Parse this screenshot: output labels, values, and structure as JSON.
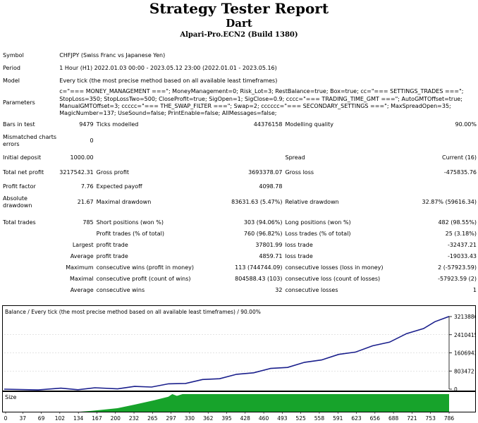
{
  "header": {
    "title": "Strategy Tester Report",
    "subtitle": "Dart",
    "server": "Alpari-Pro.ECN2 (Build 1380)"
  },
  "info": {
    "symbol_label": "Symbol",
    "symbol": "CHFJPY (Swiss Franc vs Japanese Yen)",
    "period_label": "Period",
    "period": "1 Hour (H1) 2022.01.03 00:00 - 2023.05.12 23:00 (2022.01.01 - 2023.05.16)",
    "model_label": "Model",
    "model": "Every tick (the most precise method based on all available least timeframes)",
    "parameters_label": "Parameters",
    "parameters": "c=\"=== MONEY_MANAGEMENT ===\"; MoneyManagement=0; Risk_Lot=3; RestBalance=true; Box=true; cc=\"=== SETTINGS_TRADES ===\"; StopLoss=350; StopLossTwo=500; CloseProfit=true; SigOpen=1; SigClose=0.9; cccc=\"=== TRADING_TIME_GMT ===\"; AutoGMTOffset=true; ManualGMTOffset=3; ccccc=\"=== THE_SWAP_FILTER ===\"; Swap=2; cccccc=\"=== SECONDARY_SETTINGS ===\"; MaxSpreadOpen=35; MagicNumber=137; UseSound=false; PrintEnable=false; AllMessages=false;"
  },
  "stats": {
    "bars_label": "Bars in test",
    "bars": "9479",
    "ticks_label": "Ticks modelled",
    "ticks": "44376158",
    "quality_label": "Modelling quality",
    "quality": "90.00%",
    "mismatch_label": "Mismatched charts errors",
    "mismatch": "0",
    "deposit_label": "Initial deposit",
    "deposit": "1000.00",
    "spread_label": "Spread",
    "spread": "Current (16)",
    "netprofit_label": "Total net profit",
    "netprofit": "3217542.31",
    "grossprofit_label": "Gross profit",
    "grossprofit": "3693378.07",
    "grossloss_label": "Gross loss",
    "grossloss": "-475835.76",
    "pf_label": "Profit factor",
    "pf": "7.76",
    "payoff_label": "Expected payoff",
    "payoff": "4098.78",
    "absdd_label": "Absolute drawdown",
    "absdd": "21.67",
    "maxdd_label": "Maximal drawdown",
    "maxdd": "83631.63 (5.47%)",
    "reldd_label": "Relative drawdown",
    "reldd": "32.87% (59616.34)",
    "trades_label": "Total trades",
    "trades": "785",
    "short_label": "Short positions (won %)",
    "short": "303 (94.06%)",
    "long_label": "Long positions (won %)",
    "long": "482 (98.55%)",
    "ptrades_label": "Profit trades (% of total)",
    "ptrades": "760 (96.82%)",
    "ltrades_label": "Loss trades (% of total)",
    "ltrades": "25 (3.18%)",
    "largest_label": "Largest",
    "avg_label": "Average",
    "maximum_label": "Maximum",
    "maximal_label": "Maximal",
    "average2_label": "Average",
    "profit_trade_label": "profit trade",
    "loss_trade_label": "loss trade",
    "largest_profit": "37801.99",
    "largest_loss": "-32437.21",
    "avg_profit": "4859.71",
    "avg_loss": "-19033.43",
    "cons_wins_money_label": "consecutive wins (profit in money)",
    "cons_wins_money": "113 (744744.09)",
    "cons_losses_money_label": "consecutive losses (loss in money)",
    "cons_losses_money": "2 (-57923.59)",
    "cons_profit_label": "consecutive profit (count of wins)",
    "cons_profit": "804588.43 (103)",
    "cons_loss_label": "consecutive loss (count of losses)",
    "cons_loss": "-57923.59 (2)",
    "avg_cons_wins_label": "consecutive wins",
    "avg_cons_wins": "32",
    "avg_cons_losses_label": "consecutive losses",
    "avg_cons_losses": "1"
  },
  "chart_data": [
    {
      "type": "line",
      "title": "Balance / Every tick (the most precise method based on all available least timeframes) / 90.00%",
      "y_ticks": [
        "3213886",
        "2410415",
        "1606943",
        "803472",
        "0"
      ],
      "ylim": [
        0,
        3213886
      ],
      "xlim": [
        0,
        785
      ],
      "series": [
        {
          "values": [
            [
              0,
              1000
            ],
            [
              60,
              2500
            ],
            [
              100,
              6000
            ],
            [
              130,
              12000
            ],
            [
              160,
              25000
            ],
            [
              200,
              50000
            ],
            [
              230,
              85000
            ],
            [
              260,
              130000
            ],
            [
              290,
              200000
            ],
            [
              320,
              290000
            ],
            [
              350,
              390000
            ],
            [
              380,
              500000
            ],
            [
              410,
              620000
            ],
            [
              440,
              760000
            ],
            [
              470,
              880000
            ],
            [
              500,
              1000000
            ],
            [
              530,
              1150000
            ],
            [
              560,
              1330000
            ],
            [
              590,
              1500000
            ],
            [
              620,
              1680000
            ],
            [
              650,
              1880000
            ],
            [
              680,
              2120000
            ],
            [
              710,
              2420000
            ],
            [
              740,
              2720000
            ],
            [
              760,
              2950000
            ],
            [
              785,
              3217542
            ]
          ],
          "color": "#1a1f8c"
        }
      ]
    },
    {
      "type": "area",
      "title": "Size",
      "x_ticks": [
        "0",
        "37",
        "69",
        "102",
        "134",
        "167",
        "200",
        "232",
        "265",
        "297",
        "330",
        "362",
        "395",
        "428",
        "460",
        "493",
        "525",
        "558",
        "591",
        "623",
        "656",
        "688",
        "721",
        "753",
        "786"
      ],
      "xlim": [
        0,
        786
      ],
      "series": [
        {
          "values": [
            [
              0,
              0
            ],
            [
              134,
              0
            ],
            [
              150,
              0.04
            ],
            [
              170,
              0.1
            ],
            [
              200,
              0.2
            ],
            [
              230,
              0.4
            ],
            [
              265,
              0.65
            ],
            [
              290,
              0.85
            ],
            [
              297,
              1
            ],
            [
              305,
              0.9
            ],
            [
              315,
              1
            ],
            [
              786,
              1
            ]
          ],
          "color": "#17a32b"
        }
      ]
    }
  ]
}
